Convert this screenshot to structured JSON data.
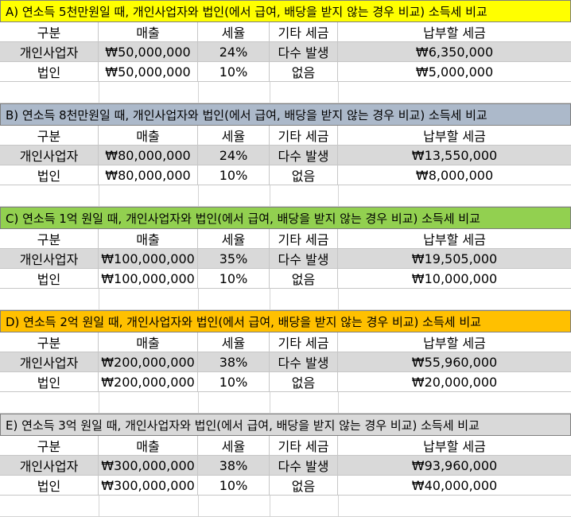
{
  "headers": {
    "category": "구분",
    "revenue": "매출",
    "tax_rate": "세율",
    "other_tax": "기타 세금",
    "tax_due": "납부할 세금"
  },
  "sections": [
    {
      "title": "A) 연소득 5천만원일 때, 개인사업자와 법인(에서 급여, 배당을 받지 않는 경우 비교) 소득세 비교",
      "color": "#ffff00",
      "rows": [
        {
          "category": "개인사업자",
          "revenue": "₩50,000,000",
          "tax_rate": "24%",
          "other_tax": "다수 발생",
          "tax_due": "₩6,350,000"
        },
        {
          "category": "법인",
          "revenue": "₩50,000,000",
          "tax_rate": "10%",
          "other_tax": "없음",
          "tax_due": "₩5,000,000"
        }
      ]
    },
    {
      "title": "B) 연소득 8천만원일 때, 개인사업자와 법인(에서 급여, 배당을 받지 않는 경우 비교) 소득세 비교",
      "color": "#acb9ca",
      "rows": [
        {
          "category": "개인사업자",
          "revenue": "₩80,000,000",
          "tax_rate": "24%",
          "other_tax": "다수 발생",
          "tax_due": "₩13,550,000"
        },
        {
          "category": "법인",
          "revenue": "₩80,000,000",
          "tax_rate": "10%",
          "other_tax": "없음",
          "tax_due": "₩8,000,000"
        }
      ]
    },
    {
      "title": "C) 연소득 1억 원일 때, 개인사업자와 법인(에서 급여, 배당을 받지 않는 경우 비교) 소득세 비교",
      "color": "#92d050",
      "rows": [
        {
          "category": "개인사업자",
          "revenue": "₩100,000,000",
          "tax_rate": "35%",
          "other_tax": "다수 발생",
          "tax_due": "₩19,505,000"
        },
        {
          "category": "법인",
          "revenue": "₩100,000,000",
          "tax_rate": "10%",
          "other_tax": "없음",
          "tax_due": "₩10,000,000"
        }
      ]
    },
    {
      "title": "D) 연소득 2억 원일 때, 개인사업자와 법인(에서 급여, 배당을 받지 않는 경우 비교) 소득세 비교",
      "color": "#ffc000",
      "rows": [
        {
          "category": "개인사업자",
          "revenue": "₩200,000,000",
          "tax_rate": "38%",
          "other_tax": "다수 발생",
          "tax_due": "₩55,960,000"
        },
        {
          "category": "법인",
          "revenue": "₩200,000,000",
          "tax_rate": "10%",
          "other_tax": "없음",
          "tax_due": "₩20,000,000"
        }
      ]
    },
    {
      "title": "E) 연소득 3억 원일 때, 개인사업자와 법인(에서 급여, 배당을 받지 않는 경우 비교) 소득세 비교",
      "color": "#d9d9d9",
      "rows": [
        {
          "category": "개인사업자",
          "revenue": "₩300,000,000",
          "tax_rate": "38%",
          "other_tax": "다수 발생",
          "tax_due": "₩93,960,000"
        },
        {
          "category": "법인",
          "revenue": "₩300,000,000",
          "tax_rate": "10%",
          "other_tax": "없음",
          "tax_due": "₩40,000,000"
        }
      ]
    }
  ]
}
